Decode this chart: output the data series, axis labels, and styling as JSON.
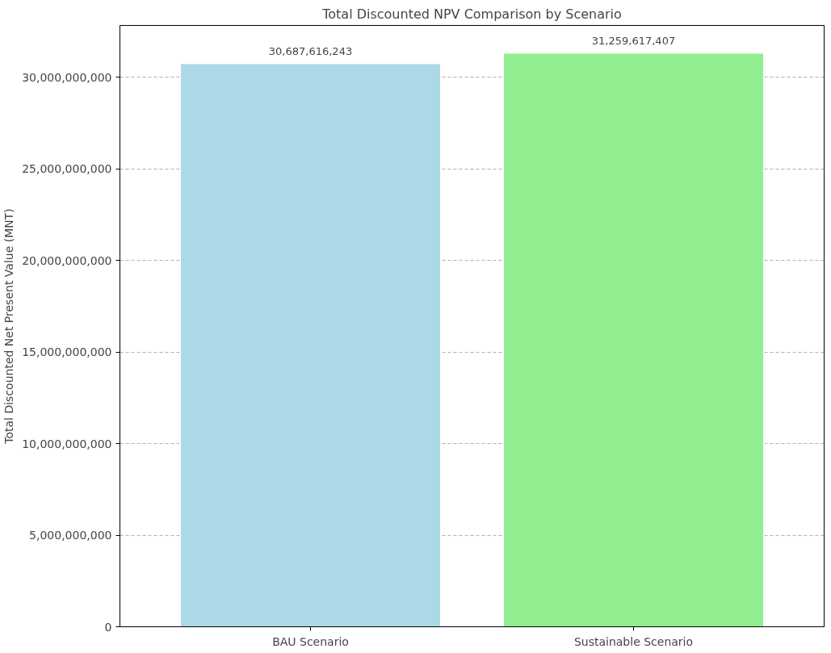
{
  "chart_data": {
    "type": "bar",
    "title": "Total Discounted NPV Comparison by Scenario",
    "ylabel": "Total Discounted Net Present Value (MNT)",
    "categories": [
      "BAU Scenario",
      "Sustainable Scenario"
    ],
    "values": [
      30687616243,
      31259617407
    ],
    "colors": [
      "#add8e6",
      "#90ee90"
    ],
    "ylim": [
      0,
      32820000000
    ],
    "yticks": [
      {
        "value": 0,
        "label": "0"
      },
      {
        "value": 5000000000,
        "label": "5,000,000,000"
      },
      {
        "value": 10000000000,
        "label": "10,000,000,000"
      },
      {
        "value": 15000000000,
        "label": "15,000,000,000"
      },
      {
        "value": 20000000000,
        "label": "20,000,000,000"
      },
      {
        "value": 25000000000,
        "label": "25,000,000,000"
      },
      {
        "value": 30000000000,
        "label": "30,000,000,000"
      }
    ],
    "grid": "y",
    "value_labels": [
      "30,687,616,243",
      "31,259,617,407"
    ]
  }
}
